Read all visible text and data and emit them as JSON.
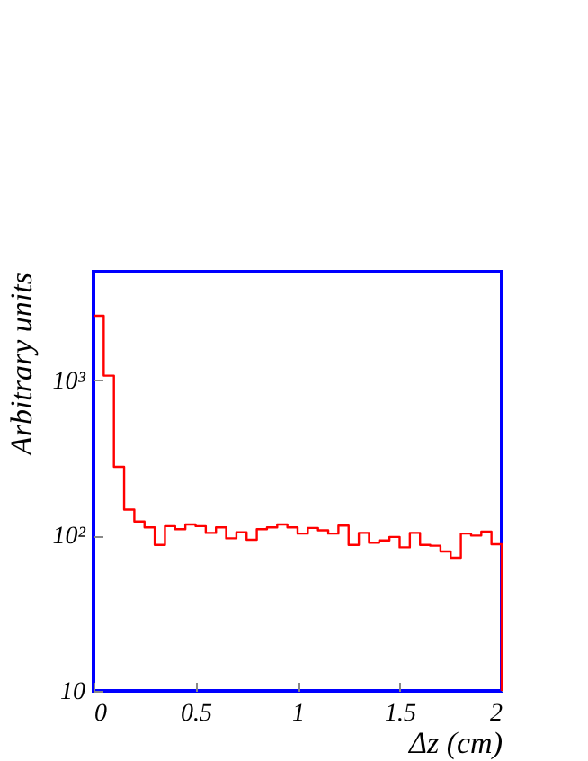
{
  "chart_data": {
    "type": "histogram",
    "xlabel": "Δz (cm)",
    "ylabel": "Arbitrary units",
    "color": "#ff0000",
    "log": "y",
    "bins": [
      0,
      0.05,
      0.1,
      0.15,
      0.2,
      0.25,
      0.3,
      0.35,
      0.4,
      0.45,
      0.5,
      0.55,
      0.6,
      0.65,
      0.7,
      0.75,
      0.8,
      0.85,
      0.9,
      0.95,
      1,
      1.05,
      1.1,
      1.15,
      1.2,
      1.25,
      1.3,
      1.35,
      1.4,
      1.45,
      1.5,
      1.55,
      1.6,
      1.65,
      1.7,
      1.75,
      1.8,
      1.85,
      1.9,
      1.95,
      2
    ],
    "values": [
      2600,
      1070,
      277,
      147,
      123,
      113,
      87,
      115,
      110,
      118,
      115,
      104,
      113,
      96,
      105,
      94,
      110,
      113,
      118,
      113,
      103,
      112,
      108,
      103,
      116,
      87,
      104,
      90,
      93,
      98,
      84,
      104,
      87,
      86,
      79,
      72,
      103,
      100,
      106,
      88
    ],
    "xlim": [
      0,
      2
    ],
    "xticks": [
      0,
      0.5,
      1,
      1.5,
      2
    ],
    "ylim": [
      10,
      5000
    ],
    "yticks": [
      10,
      {
        "value": 100,
        "label": "10²"
      },
      {
        "value": 1000,
        "label": "10³"
      }
    ]
  }
}
